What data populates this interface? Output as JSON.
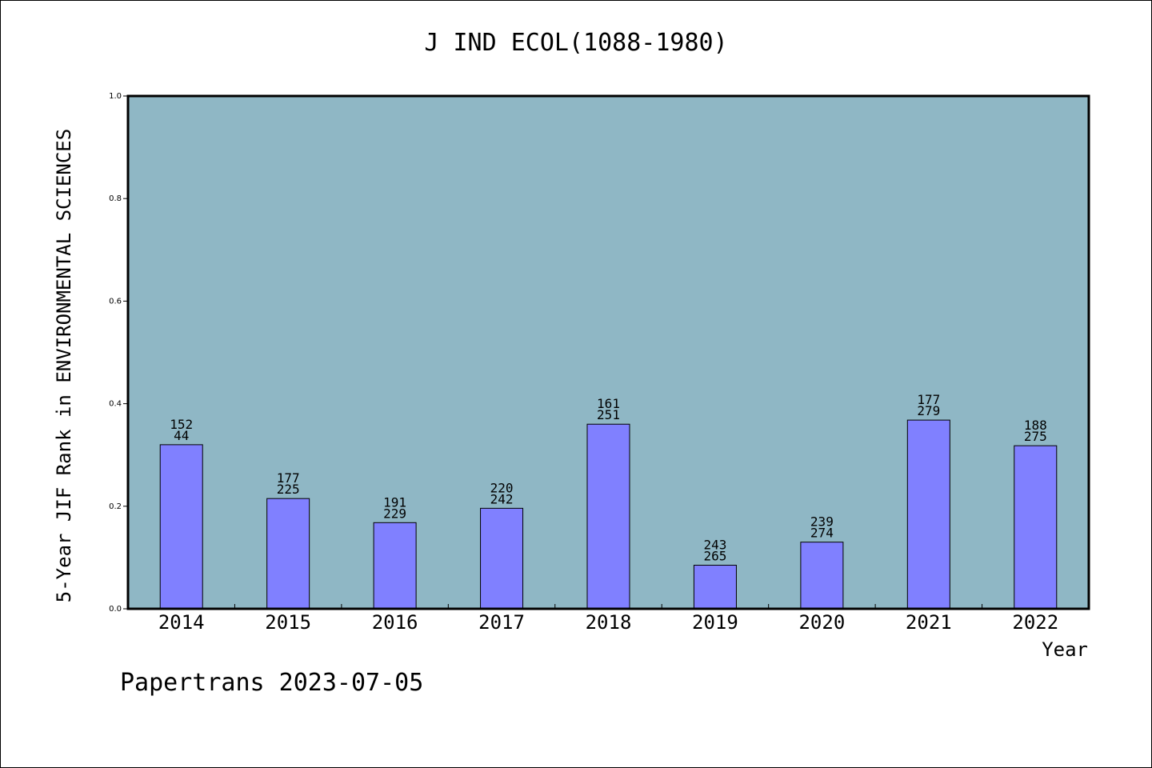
{
  "chart_data": {
    "type": "bar",
    "title": "J IND ECOL(1088-1980)",
    "xlabel": "Year",
    "ylabel": "5-Year JIF Rank in ENVIRONMENTAL SCIENCES",
    "categories": [
      "2014",
      "2015",
      "2016",
      "2017",
      "2018",
      "2019",
      "2020",
      "2021",
      "2022"
    ],
    "values": [
      0.32,
      0.215,
      0.168,
      0.196,
      0.36,
      0.085,
      0.13,
      0.368,
      0.318
    ],
    "bar_labels_top": [
      "152",
      "177",
      "191",
      "220",
      "161",
      "243",
      "239",
      "177",
      "188"
    ],
    "bar_labels_bottom": [
      "44",
      "225",
      "229",
      "242",
      "251",
      "265",
      "274",
      "279",
      "275"
    ],
    "ylim": [
      0,
      1.0
    ],
    "yticks": [
      "0.0",
      "0.2",
      "0.4",
      "0.6",
      "0.8",
      "1.0"
    ],
    "ytick_values": [
      0,
      0.2,
      0.4,
      0.6,
      0.8,
      1.0
    ],
    "grid": false,
    "colors": {
      "plot_background": "#8fb7c5",
      "bar_fill": "#8080ff",
      "bar_stroke": "#000000"
    }
  },
  "footer": "Papertrans 2023-07-05"
}
